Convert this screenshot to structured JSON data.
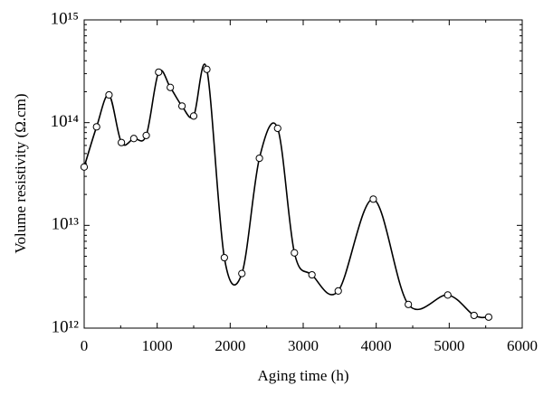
{
  "chart_data": {
    "type": "line",
    "x_label": "Aging time (h)",
    "y_label": "Volume resistivity (Ω.cm)",
    "x": [
      0,
      170,
      340,
      510,
      680,
      850,
      1020,
      1180,
      1340,
      1500,
      1680,
      1920,
      2160,
      2400,
      2650,
      2880,
      3120,
      3480,
      3960,
      4440,
      4980,
      5340,
      5540
    ],
    "values": [
      37000000000000.0,
      91000000000000.0,
      186000000000000.0,
      64000000000000.0,
      70000000000000.0,
      75000000000000.0,
      310000000000000.0,
      220000000000000.0,
      145000000000000.0,
      116000000000000.0,
      330000000000000.0,
      4850000000000.0,
      3400000000000.0,
      45000000000000.0,
      88000000000000.0,
      5400000000000.0,
      3300000000000.0,
      2300000000000.0,
      18000000000000.0,
      1700000000000.0,
      2100000000000.0,
      1330000000000.0,
      1280000000000.0
    ],
    "color": "#000000",
    "log_y": true,
    "xlim": [
      0,
      6000
    ],
    "xticks": [
      0,
      1000,
      2000,
      3000,
      4000,
      5000,
      6000
    ],
    "ylim": [
      1000000000000.0,
      1000000000000000.0
    ],
    "yticks": [
      {
        "value": 1000000000000.0,
        "label": "10¹²"
      },
      {
        "value": 10000000000000.0,
        "label": "10¹³"
      },
      {
        "value": 100000000000000.0,
        "label": "10¹⁴"
      },
      {
        "value": 1000000000000000.0,
        "label": "10¹⁵"
      }
    ]
  }
}
